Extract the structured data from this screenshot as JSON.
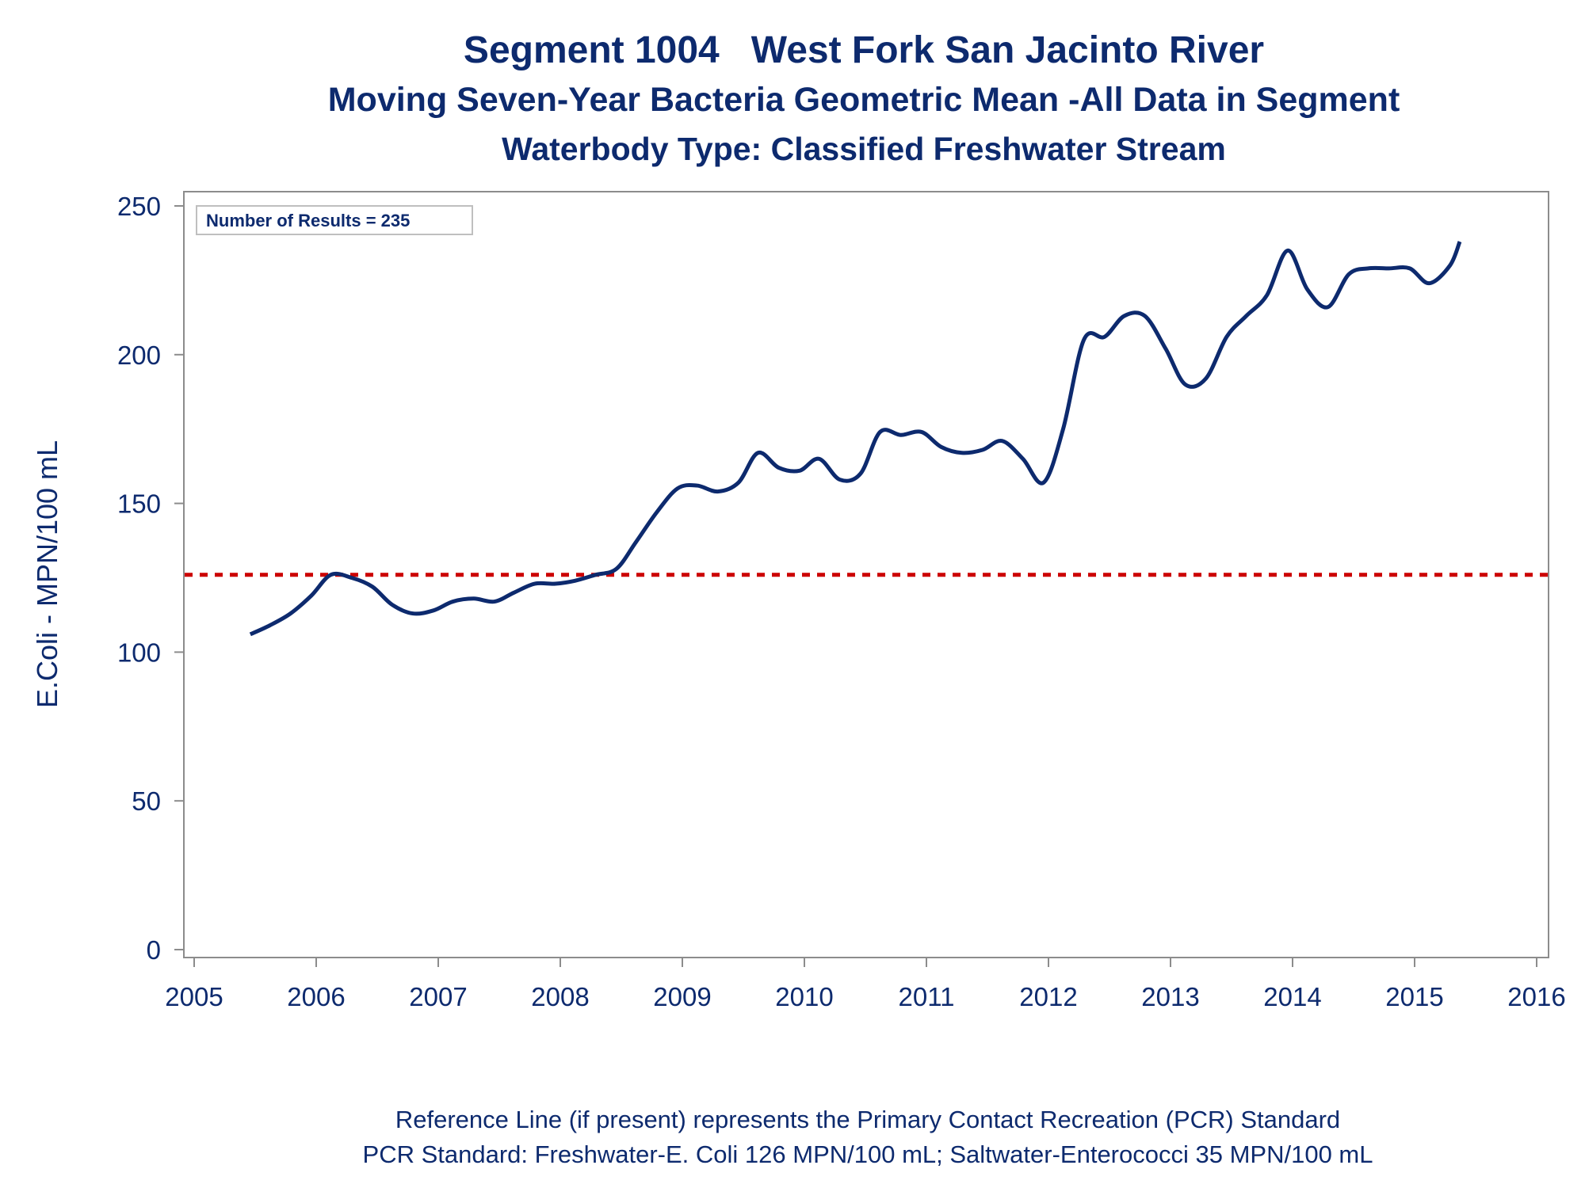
{
  "titles": {
    "line1": "Segment 1004   West Fork San Jacinto River",
    "line2": "Moving Seven-Year Bacteria Geometric Mean -All Data in Segment",
    "line3": "Waterbody Type: Classified Freshwater Stream"
  },
  "footnotes": {
    "line1": "Reference Line (if present) represents the Primary Contact Recreation (PCR) Standard",
    "line2": "PCR Standard: Freshwater-E. Coli 126 MPN/100 mL; Saltwater-Enterococci 35 MPN/100 mL"
  },
  "colors": {
    "series": "#0d2a6e",
    "reference": "#cc0000",
    "axis": "#8c8c8c",
    "text": "#0d2a6e"
  },
  "chart_data": {
    "type": "line",
    "ylabel": "E.Coli - MPN/100 mL",
    "xlim": [
      2005,
      2016
    ],
    "ylim": [
      0,
      250
    ],
    "xticks": [
      2005,
      2006,
      2007,
      2008,
      2009,
      2010,
      2011,
      2012,
      2013,
      2014,
      2015,
      2016
    ],
    "yticks": [
      0,
      50,
      100,
      150,
      200,
      250
    ],
    "grid": false,
    "inset_label": "Number of Results = 235",
    "reference_line": {
      "y": 126,
      "style": "dashed"
    },
    "series": [
      {
        "x": [
          2005.46,
          2005.62,
          2005.79,
          2005.96,
          2006.12,
          2006.29,
          2006.46,
          2006.62,
          2006.79,
          2006.96,
          2007.12,
          2007.29,
          2007.46,
          2007.62,
          2007.79,
          2007.96,
          2008.12,
          2008.29,
          2008.46,
          2008.62,
          2008.79,
          2008.96,
          2009.12,
          2009.29,
          2009.46,
          2009.62,
          2009.79,
          2009.96,
          2010.12,
          2010.29,
          2010.46,
          2010.62,
          2010.79,
          2010.96,
          2011.12,
          2011.29,
          2011.46,
          2011.62,
          2011.79,
          2011.96,
          2012.12,
          2012.29,
          2012.46,
          2012.62,
          2012.79,
          2012.96,
          2013.12,
          2013.29,
          2013.46,
          2013.62,
          2013.79,
          2013.96,
          2014.12,
          2014.29,
          2014.46,
          2014.62,
          2014.79,
          2014.96,
          2015.12,
          2015.29,
          2015.37
        ],
        "y": [
          106,
          109,
          113,
          119,
          126,
          125,
          122,
          116,
          113,
          114,
          117,
          118,
          117,
          120,
          123,
          123,
          124,
          126,
          128,
          137,
          147,
          155,
          156,
          154,
          157,
          167,
          162,
          161,
          165,
          158,
          160,
          174,
          173,
          174,
          169,
          167,
          168,
          171,
          165,
          157,
          175,
          205,
          206,
          213,
          213,
          202,
          190,
          192,
          206,
          213,
          220,
          235,
          222,
          216,
          227,
          229,
          229,
          229,
          224,
          230,
          238
        ]
      }
    ]
  }
}
